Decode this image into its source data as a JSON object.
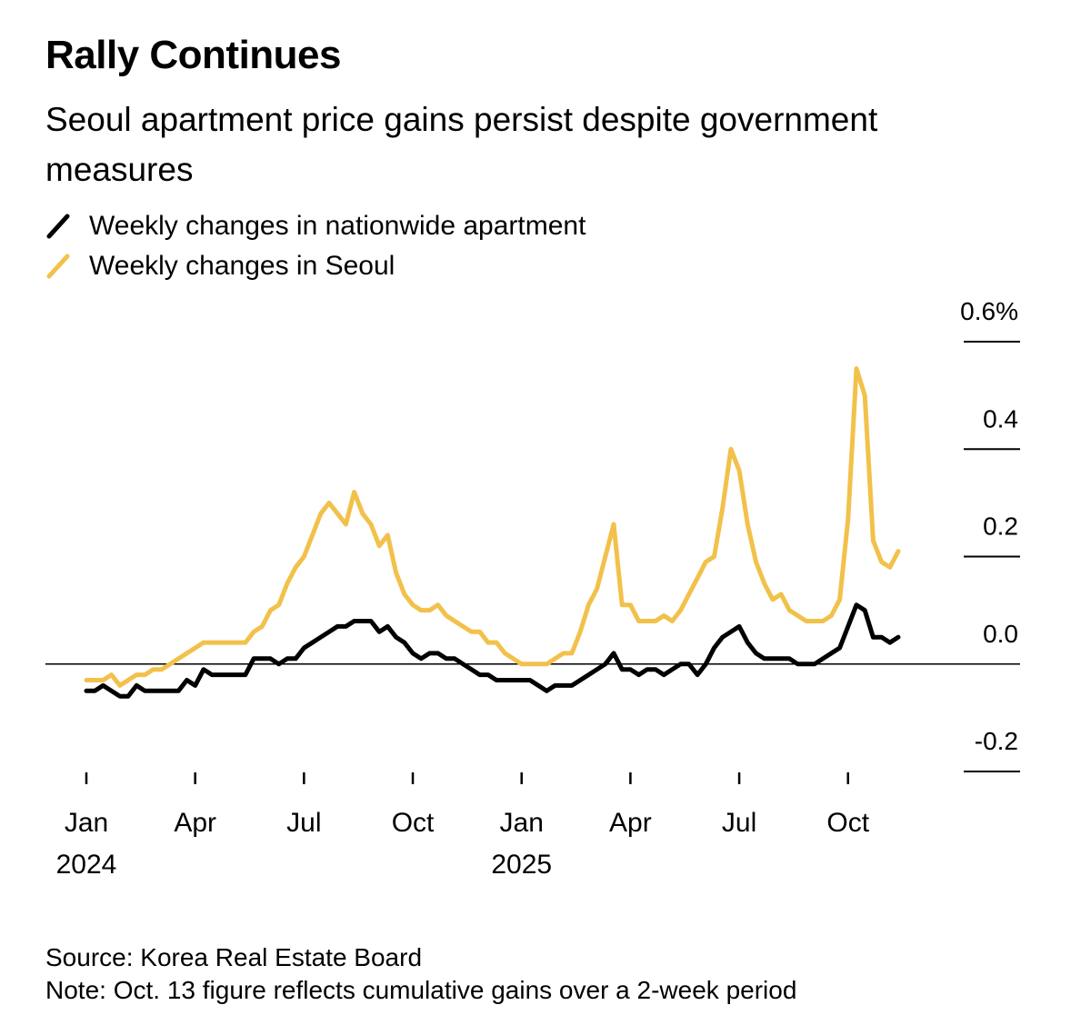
{
  "chart_data": {
    "type": "line",
    "title": "Rally Continues",
    "subtitle": "Seoul apartment price gains persist despite government measures",
    "source": "Source: Korea Real Estate Board",
    "note": "Note: Oct. 13 figure reflects cumulative gains over a 2-week period",
    "categories": [
      "Jan 2024",
      null,
      null,
      null,
      null,
      null,
      null,
      null,
      null,
      null,
      null,
      null,
      null,
      "Apr",
      null,
      null,
      null,
      null,
      null,
      null,
      null,
      null,
      null,
      null,
      null,
      null,
      "Jul",
      null,
      null,
      null,
      null,
      null,
      null,
      null,
      null,
      null,
      null,
      null,
      null,
      "Oct",
      null,
      null,
      null,
      null,
      null,
      null,
      null,
      null,
      null,
      null,
      null,
      null,
      "Jan 2025",
      null,
      null,
      null,
      null,
      null,
      null,
      null,
      null,
      null,
      null,
      null,
      null,
      "Apr",
      null,
      null,
      null,
      null,
      null,
      null,
      null,
      null,
      null,
      null,
      null,
      null,
      "Jul",
      null,
      null,
      null,
      null,
      null,
      null,
      null,
      null,
      null,
      null,
      null,
      null,
      "Oct",
      null,
      null,
      null,
      null,
      null,
      null
    ],
    "series": [
      {
        "name": "Weekly changes in nationwide apartment",
        "color": "#000000",
        "values": [
          -0.05,
          -0.05,
          -0.04,
          -0.05,
          -0.06,
          -0.06,
          -0.04,
          -0.05,
          -0.05,
          -0.05,
          -0.05,
          -0.05,
          -0.03,
          -0.04,
          -0.01,
          -0.02,
          -0.02,
          -0.02,
          -0.02,
          -0.02,
          0.01,
          0.01,
          0.01,
          0.0,
          0.01,
          0.01,
          0.03,
          0.04,
          0.05,
          0.06,
          0.07,
          0.07,
          0.08,
          0.08,
          0.08,
          0.06,
          0.07,
          0.05,
          0.04,
          0.02,
          0.01,
          0.02,
          0.02,
          0.01,
          0.01,
          0.0,
          -0.01,
          -0.02,
          -0.02,
          -0.03,
          -0.03,
          -0.03,
          -0.03,
          -0.03,
          -0.04,
          -0.05,
          -0.04,
          -0.04,
          -0.04,
          -0.03,
          -0.02,
          -0.01,
          0.0,
          0.02,
          -0.01,
          -0.01,
          -0.02,
          -0.01,
          -0.01,
          -0.02,
          -0.01,
          0.0,
          0.0,
          -0.02,
          0.0,
          0.03,
          0.05,
          0.06,
          0.07,
          0.04,
          0.02,
          0.01,
          0.01,
          0.01,
          0.01,
          0.0,
          0.0,
          0.0,
          0.01,
          0.02,
          0.03,
          0.07,
          0.11,
          0.1,
          0.05,
          0.05,
          0.04,
          0.05
        ]
      },
      {
        "name": "Weekly changes in Seoul",
        "color": "#f2c14b",
        "values": [
          -0.03,
          -0.03,
          -0.03,
          -0.02,
          -0.04,
          -0.03,
          -0.02,
          -0.02,
          -0.01,
          -0.01,
          0.0,
          0.01,
          0.02,
          0.03,
          0.04,
          0.04,
          0.04,
          0.04,
          0.04,
          0.04,
          0.06,
          0.07,
          0.1,
          0.11,
          0.15,
          0.18,
          0.2,
          0.24,
          0.28,
          0.3,
          0.28,
          0.26,
          0.32,
          0.28,
          0.26,
          0.22,
          0.24,
          0.17,
          0.13,
          0.11,
          0.1,
          0.1,
          0.11,
          0.09,
          0.08,
          0.07,
          0.06,
          0.06,
          0.04,
          0.04,
          0.02,
          0.01,
          0.0,
          0.0,
          0.0,
          0.0,
          0.01,
          0.02,
          0.02,
          0.06,
          0.11,
          0.14,
          0.2,
          0.26,
          0.11,
          0.11,
          0.08,
          0.08,
          0.08,
          0.09,
          0.08,
          0.1,
          0.13,
          0.16,
          0.19,
          0.2,
          0.29,
          0.4,
          0.36,
          0.26,
          0.19,
          0.15,
          0.12,
          0.13,
          0.1,
          0.09,
          0.08,
          0.08,
          0.08,
          0.09,
          0.12,
          0.27,
          0.55,
          0.5,
          0.23,
          0.19,
          0.18,
          0.21
        ]
      }
    ],
    "ylim": [
      -0.2,
      0.6
    ],
    "yticks": [
      {
        "value": -0.2,
        "label": "-0.2"
      },
      {
        "value": 0,
        "label": "0.0"
      },
      0.2,
      0.4,
      {
        "value": 0.6,
        "label": "0.6%"
      }
    ]
  }
}
